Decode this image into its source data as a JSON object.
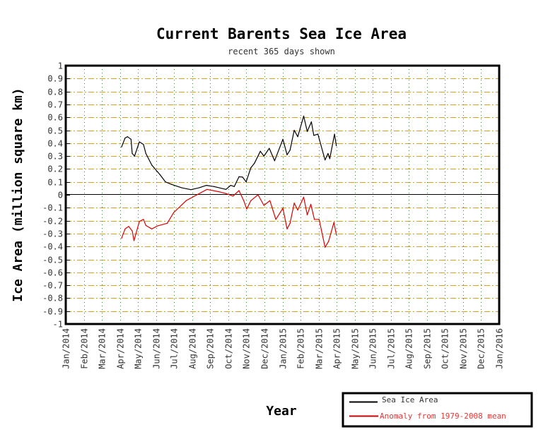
{
  "chart_data": {
    "type": "line",
    "title": "Current Barents Sea Ice Area",
    "subtitle": "recent 365 days shown",
    "xlabel": "Year",
    "ylabel": "Ice Area (million square km)",
    "x_unit": "days since Jan 1 2014",
    "ylim": [
      -1,
      1
    ],
    "grid": true,
    "legend_position": "bottom-right",
    "y_ticks": [
      "1",
      "0.9",
      "0.8",
      "0.7",
      "0.6",
      "0.5",
      "0.4",
      "0.3",
      "0.2",
      "0.1",
      "0",
      "-0.1",
      "-0.2",
      "-0.3",
      "-0.4",
      "-0.5",
      "-0.6",
      "-0.7",
      "-0.8",
      "-0.9",
      "-1"
    ],
    "x_ticks": [
      "Jan/2014",
      "Feb/2014",
      "Mar/2014",
      "Apr/2014",
      "May/2014",
      "Jun/2014",
      "Jul/2014",
      "Aug/2014",
      "Sep/2014",
      "Oct/2014",
      "Nov/2014",
      "Dec/2014",
      "Jan/2015",
      "Feb/2015",
      "Mar/2015",
      "Apr/2015",
      "May/2015",
      "Jun/2015",
      "Jul/2015",
      "Aug/2015",
      "Sep/2015",
      "Oct/2015",
      "Nov/2015",
      "Dec/2015",
      "Jan/2016"
    ],
    "series": [
      {
        "name": "Sea Ice Area",
        "color": "#000000",
        "x": [
          94,
          100,
          104,
          110,
          112,
          116,
          124,
          131,
          135,
          145,
          159,
          168,
          179,
          195,
          211,
          225,
          237,
          250,
          270,
          278,
          284,
          292,
          298,
          304,
          312,
          318,
          328,
          334,
          343,
          352,
          366,
          373,
          378,
          385,
          391,
          401,
          407,
          414,
          418,
          425,
          437,
          442,
          445,
          453,
          456
        ],
        "y": [
          0.37,
          0.44,
          0.45,
          0.43,
          0.32,
          0.3,
          0.41,
          0.39,
          0.32,
          0.23,
          0.155,
          0.1,
          0.08,
          0.055,
          0.04,
          0.055,
          0.073,
          0.064,
          0.042,
          0.073,
          0.064,
          0.14,
          0.137,
          0.1,
          0.21,
          0.245,
          0.337,
          0.3,
          0.36,
          0.264,
          0.43,
          0.31,
          0.346,
          0.5,
          0.45,
          0.61,
          0.49,
          0.565,
          0.46,
          0.47,
          0.27,
          0.32,
          0.28,
          0.47,
          0.38
        ]
      },
      {
        "name": "Anomaly from 1979-2008 mean",
        "color": "#dd0000",
        "x": [
          94,
          100,
          106,
          112,
          115,
          124,
          131,
          135,
          145,
          155,
          171,
          182,
          203,
          223,
          238,
          258,
          270,
          282,
          292,
          300,
          305,
          312,
          324,
          334,
          344,
          354,
          366,
          373,
          378,
          385,
          391,
          401,
          407,
          413,
          419,
          427,
          437,
          443,
          452,
          456
        ],
        "y": [
          -0.337,
          -0.264,
          -0.245,
          -0.28,
          -0.355,
          -0.206,
          -0.19,
          -0.237,
          -0.264,
          -0.24,
          -0.22,
          -0.137,
          -0.045,
          0.005,
          0.042,
          0.024,
          0.01,
          -0.01,
          0.033,
          -0.045,
          -0.11,
          -0.045,
          0.0,
          -0.082,
          -0.045,
          -0.19,
          -0.104,
          -0.264,
          -0.22,
          -0.064,
          -0.118,
          -0.018,
          -0.155,
          -0.073,
          -0.19,
          -0.19,
          -0.406,
          -0.36,
          -0.213,
          -0.31
        ]
      }
    ]
  }
}
